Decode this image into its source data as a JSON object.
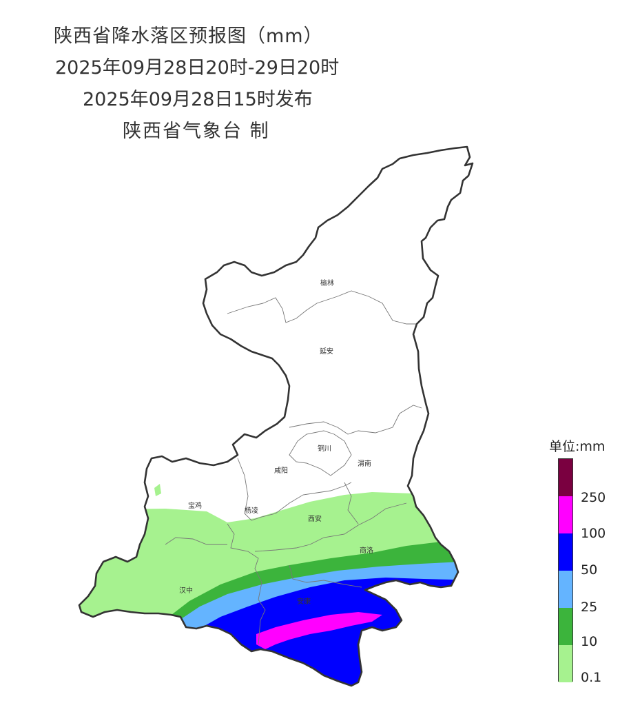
{
  "title": {
    "line1": "陕西省降水落区预报图（mm）",
    "line2": "2025年09月28日20时-29日20时",
    "line3": "2025年09月28日15时发布",
    "line4": "陕西省气象台 制"
  },
  "cities": {
    "yulin": "榆林",
    "yanan": "延安",
    "tongchuan": "铜川",
    "xianyang": "咸阳",
    "weinan": "渭南",
    "baoji": "宝鸡",
    "yangling": "杨凌",
    "xian": "西安",
    "shangluo": "商洛",
    "hanzhong": "汉中",
    "ankang": "安康"
  },
  "legend": {
    "title": "单位:mm",
    "labels": [
      "250",
      "100",
      "50",
      "25",
      "10",
      "0.1"
    ],
    "colors": [
      "#7a0040",
      "#ff00ff",
      "#0000ff",
      "#64b4ff",
      "#3cb43c",
      "#a6f28f"
    ]
  }
}
